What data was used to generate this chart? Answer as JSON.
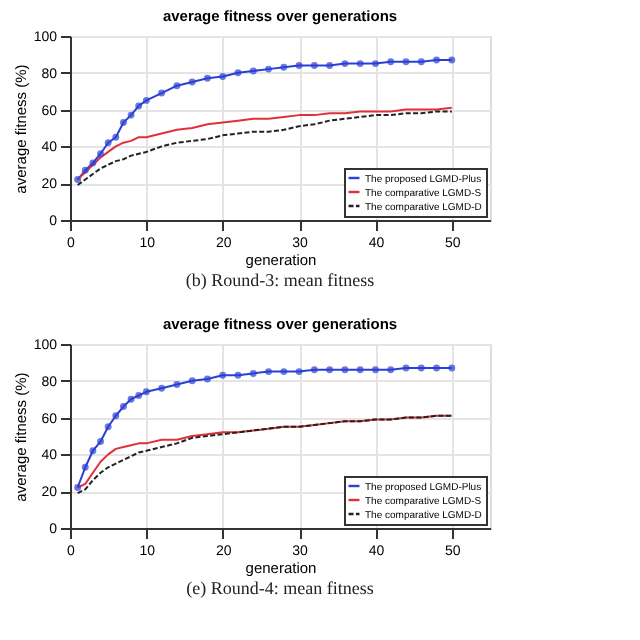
{
  "chart_data": [
    {
      "type": "line",
      "title": "average fitness over generations",
      "xlabel": "generation",
      "ylabel": "average fitness (%)",
      "annotations": [
        "(b) Round-3: mean fitness"
      ],
      "xlim": [
        0,
        55
      ],
      "xticks": [
        0,
        10,
        20,
        30,
        40,
        50
      ],
      "ylim": [
        0,
        100
      ],
      "yticks": [
        0,
        20,
        40,
        60,
        80,
        100
      ],
      "grid": true,
      "legend": "bottom right",
      "x": [
        1,
        2,
        3,
        4,
        5,
        6,
        7,
        8,
        9,
        10,
        12,
        14,
        16,
        18,
        20,
        22,
        24,
        26,
        28,
        30,
        32,
        34,
        36,
        38,
        40,
        42,
        44,
        46,
        48,
        50
      ],
      "series": [
        {
          "name": "The proposed LGMD-Plus",
          "color": "#2b3fd6",
          "marker": "circle",
          "line_style": "solid",
          "values": [
            22,
            27,
            31,
            36,
            42,
            45,
            53,
            57,
            62,
            65,
            69,
            73,
            75,
            77,
            78,
            80,
            81,
            82,
            83,
            84,
            84,
            84,
            85,
            85,
            85,
            86,
            86,
            86,
            87,
            87
          ]
        },
        {
          "name": "The comparative LGMD-S",
          "color": "#e0303a",
          "marker": "none",
          "line_style": "solid",
          "values": [
            22,
            26,
            30,
            34,
            37,
            40,
            42,
            43,
            45,
            45,
            47,
            49,
            50,
            52,
            53,
            54,
            55,
            55,
            56,
            57,
            57,
            58,
            58,
            59,
            59,
            59,
            60,
            60,
            60,
            61
          ]
        },
        {
          "name": "The comparative LGMD-D",
          "color": "#222222",
          "marker": "none",
          "line_style": "dashed",
          "values": [
            19,
            22,
            25,
            28,
            30,
            32,
            33,
            35,
            36,
            37,
            40,
            42,
            43,
            44,
            46,
            47,
            48,
            48,
            49,
            51,
            52,
            54,
            55,
            56,
            57,
            57,
            58,
            58,
            59,
            59
          ]
        }
      ]
    },
    {
      "type": "line",
      "title": "average fitness over generations",
      "xlabel": "generation",
      "ylabel": "average fitness (%)",
      "annotations": [
        "(e) Round-4: mean fitness"
      ],
      "xlim": [
        0,
        55
      ],
      "xticks": [
        0,
        10,
        20,
        30,
        40,
        50
      ],
      "ylim": [
        0,
        100
      ],
      "yticks": [
        0,
        20,
        40,
        60,
        80,
        100
      ],
      "grid": true,
      "legend": "bottom right",
      "x": [
        1,
        2,
        3,
        4,
        5,
        6,
        7,
        8,
        9,
        10,
        12,
        14,
        16,
        18,
        20,
        22,
        24,
        26,
        28,
        30,
        32,
        34,
        36,
        38,
        40,
        42,
        44,
        46,
        48,
        50
      ],
      "series": [
        {
          "name": "The proposed LGMD-Plus",
          "color": "#2b3fd6",
          "marker": "circle",
          "line_style": "solid",
          "values": [
            22,
            33,
            42,
            47,
            55,
            61,
            66,
            70,
            72,
            74,
            76,
            78,
            80,
            81,
            83,
            83,
            84,
            85,
            85,
            85,
            86,
            86,
            86,
            86,
            86,
            86,
            87,
            87,
            87,
            87
          ]
        },
        {
          "name": "The comparative LGMD-S",
          "color": "#e0303a",
          "marker": "none",
          "line_style": "solid",
          "values": [
            22,
            24,
            30,
            36,
            40,
            43,
            44,
            45,
            46,
            46,
            48,
            48,
            50,
            51,
            52,
            52,
            53,
            54,
            55,
            55,
            56,
            57,
            58,
            58,
            59,
            59,
            60,
            60,
            61,
            61
          ]
        },
        {
          "name": "The comparative LGMD-D",
          "color": "#222222",
          "marker": "none",
          "line_style": "dashed",
          "values": [
            19,
            21,
            26,
            30,
            33,
            35,
            37,
            39,
            41,
            42,
            44,
            46,
            49,
            50,
            51,
            52,
            53,
            54,
            55,
            55,
            56,
            57,
            58,
            58,
            59,
            59,
            60,
            60,
            61,
            61
          ]
        }
      ]
    }
  ]
}
